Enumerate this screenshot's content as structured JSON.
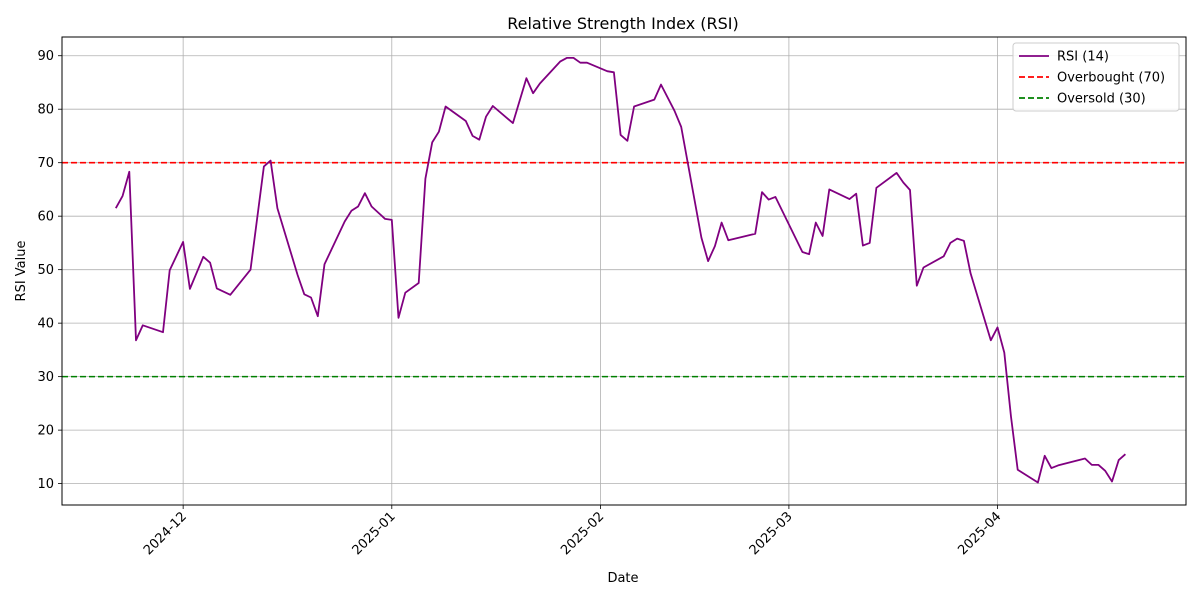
{
  "chart_data": {
    "type": "line",
    "title": "Relative Strength Index (RSI)",
    "xlabel": "Date",
    "ylabel": "RSI Value",
    "xlim": [
      "2024-11-13",
      "2025-04-29"
    ],
    "ylim": [
      6,
      93.5
    ],
    "yticks": [
      10,
      20,
      30,
      40,
      50,
      60,
      70,
      80,
      90
    ],
    "xticks": [
      "2024-12-01",
      "2025-01-01",
      "2025-02-01",
      "2025-03-01",
      "2025-04-01"
    ],
    "xtick_labels": [
      "2024-12",
      "2025-01",
      "2025-02",
      "2025-03",
      "2025-04"
    ],
    "grid": true,
    "legend_position": "top-right",
    "series": [
      {
        "name": "RSI (14)",
        "color": "#800080",
        "style": "solid",
        "x": [
          "2024-11-21",
          "2024-11-22",
          "2024-11-23",
          "2024-11-24",
          "2024-11-25",
          "2024-11-28",
          "2024-11-29",
          "2024-12-01",
          "2024-12-02",
          "2024-12-04",
          "2024-12-05",
          "2024-12-06",
          "2024-12-08",
          "2024-12-11",
          "2024-12-13",
          "2024-12-14",
          "2024-12-15",
          "2024-12-18",
          "2024-12-19",
          "2024-12-20",
          "2024-12-21",
          "2024-12-22",
          "2024-12-25",
          "2024-12-26",
          "2024-12-27",
          "2024-12-28",
          "2024-12-29",
          "2024-12-31",
          "2025-01-01",
          "2025-01-02",
          "2025-01-03",
          "2025-01-05",
          "2025-01-06",
          "2025-01-07",
          "2025-01-08",
          "2025-01-09",
          "2025-01-12",
          "2025-01-13",
          "2025-01-14",
          "2025-01-15",
          "2025-01-16",
          "2025-01-19",
          "2025-01-21",
          "2025-01-22",
          "2025-01-23",
          "2025-01-26",
          "2025-01-27",
          "2025-01-28",
          "2025-01-29",
          "2025-01-30",
          "2025-02-02",
          "2025-02-03",
          "2025-02-04",
          "2025-02-05",
          "2025-02-06",
          "2025-02-09",
          "2025-02-10",
          "2025-02-12",
          "2025-02-13",
          "2025-02-16",
          "2025-02-17",
          "2025-02-18",
          "2025-02-19",
          "2025-02-20",
          "2025-02-21",
          "2025-02-24",
          "2025-02-25",
          "2025-02-26",
          "2025-02-27",
          "2025-03-03",
          "2025-03-04",
          "2025-03-05",
          "2025-03-06",
          "2025-03-07",
          "2025-03-10",
          "2025-03-11",
          "2025-03-12",
          "2025-03-13",
          "2025-03-14",
          "2025-03-17",
          "2025-03-18",
          "2025-03-19",
          "2025-03-20",
          "2025-03-21",
          "2025-03-24",
          "2025-03-25",
          "2025-03-26",
          "2025-03-27",
          "2025-03-28",
          "2025-03-31",
          "2025-04-01",
          "2025-04-02",
          "2025-04-03",
          "2025-04-04",
          "2025-04-07",
          "2025-04-08",
          "2025-04-09",
          "2025-04-10",
          "2025-04-14",
          "2025-04-15",
          "2025-04-16",
          "2025-04-17",
          "2025-04-18",
          "2025-04-19",
          "2025-04-20"
        ],
        "values": [
          61.5,
          63.8,
          68.3,
          36.8,
          39.6,
          38.3,
          49.9,
          55.2,
          46.4,
          52.4,
          51.3,
          46.5,
          45.3,
          50.0,
          69.3,
          70.4,
          61.5,
          49.0,
          45.4,
          44.8,
          41.3,
          51.0,
          59.0,
          61.0,
          61.8,
          64.3,
          61.8,
          59.5,
          59.3,
          41.0,
          45.7,
          47.5,
          67.0,
          73.8,
          75.8,
          80.5,
          77.8,
          75.0,
          74.3,
          78.6,
          80.6,
          77.4,
          85.8,
          83.0,
          84.8,
          88.9,
          89.6,
          89.6,
          88.7,
          88.7,
          87.1,
          86.9,
          75.2,
          74.1,
          80.5,
          81.8,
          84.6,
          79.7,
          76.7,
          56.0,
          51.6,
          54.4,
          58.8,
          55.5,
          55.8,
          56.7,
          64.5,
          63.1,
          63.6,
          53.3,
          52.9,
          58.8,
          56.3,
          65.0,
          63.2,
          64.2,
          54.5,
          55.0,
          65.3,
          68.1,
          66.3,
          64.9,
          47.0,
          50.4,
          52.5,
          55.0,
          55.8,
          55.4,
          49.3,
          36.8,
          39.2,
          34.5,
          22.5,
          12.6,
          10.2,
          15.2,
          12.9,
          13.4,
          14.7,
          13.5,
          13.5,
          12.4,
          10.4,
          14.4,
          15.5
        ]
      },
      {
        "name": "Overbought (70)",
        "color": "#ff0000",
        "style": "dashed",
        "level": 70
      },
      {
        "name": "Oversold (30)",
        "color": "#008000",
        "style": "dashed",
        "level": 30
      }
    ]
  }
}
